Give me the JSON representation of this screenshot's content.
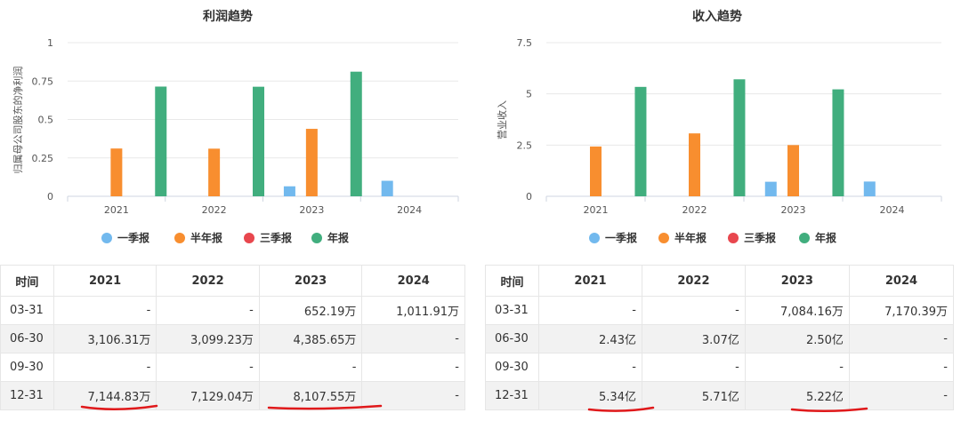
{
  "colors": {
    "q1": "#72b9ee",
    "h1": "#f88e2f",
    "q3": "#e8474e",
    "annual": "#41ae7e",
    "axis": "#cfd6e0",
    "grid": "#e8e8e8",
    "underline": "#e0191b"
  },
  "legend": [
    {
      "key": "q1",
      "label": "一季报"
    },
    {
      "key": "h1",
      "label": "半年报"
    },
    {
      "key": "q3",
      "label": "三季报"
    },
    {
      "key": "annual",
      "label": "年报"
    }
  ],
  "chart_data": [
    {
      "type": "bar",
      "title": "利润趋势",
      "ylabel": "归属母公司股东的净利润",
      "xlabel": "",
      "ylim": [
        0,
        1
      ],
      "yticks": [
        "0",
        "0.25",
        "0.5",
        "0.75",
        "1"
      ],
      "yticks_values": [
        0,
        0.25,
        0.5,
        0.75,
        1
      ],
      "categories": [
        "2021",
        "2022",
        "2023",
        "2024"
      ],
      "series": [
        {
          "name": "一季报",
          "key": "q1",
          "values": [
            null,
            null,
            0.065,
            0.101
          ]
        },
        {
          "name": "半年报",
          "key": "h1",
          "values": [
            0.311,
            0.31,
            0.439,
            null
          ]
        },
        {
          "name": "三季报",
          "key": "q3",
          "values": [
            null,
            null,
            null,
            null
          ]
        },
        {
          "name": "年报",
          "key": "annual",
          "values": [
            0.714,
            0.713,
            0.811,
            null
          ]
        }
      ]
    },
    {
      "type": "bar",
      "title": "收入趋势",
      "ylabel": "营业收入",
      "xlabel": "",
      "ylim": [
        0,
        7.5
      ],
      "yticks": [
        "0",
        "2.5",
        "5",
        "7.5"
      ],
      "yticks_values": [
        0,
        2.5,
        5,
        7.5
      ],
      "categories": [
        "2021",
        "2022",
        "2023",
        "2024"
      ],
      "series": [
        {
          "name": "一季报",
          "key": "q1",
          "values": [
            null,
            null,
            0.71,
            0.72
          ]
        },
        {
          "name": "半年报",
          "key": "h1",
          "values": [
            2.43,
            3.07,
            2.5,
            null
          ]
        },
        {
          "name": "三季报",
          "key": "q3",
          "values": [
            null,
            null,
            null,
            null
          ]
        },
        {
          "name": "年报",
          "key": "annual",
          "values": [
            5.34,
            5.71,
            5.22,
            null
          ]
        }
      ]
    }
  ],
  "tables": [
    {
      "headers": [
        "时间",
        "2021",
        "2022",
        "2023",
        "2024"
      ],
      "rows": [
        [
          "03-31",
          "-",
          "-",
          "652.19万",
          "1,011.91万"
        ],
        [
          "06-30",
          "3,106.31万",
          "3,099.23万",
          "4,385.65万",
          "-"
        ],
        [
          "09-30",
          "-",
          "-",
          "-",
          "-"
        ],
        [
          "12-31",
          "7,144.83万",
          "7,129.04万",
          "8,107.55万",
          "-"
        ]
      ]
    },
    {
      "headers": [
        "时间",
        "2021",
        "2022",
        "2023",
        "2024"
      ],
      "rows": [
        [
          "03-31",
          "-",
          "-",
          "7,084.16万",
          "7,170.39万"
        ],
        [
          "06-30",
          "2.43亿",
          "3.07亿",
          "2.50亿",
          "-"
        ],
        [
          "09-30",
          "-",
          "-",
          "-",
          "-"
        ],
        [
          "12-31",
          "5.34亿",
          "5.71亿",
          "5.22亿",
          "-"
        ]
      ]
    }
  ]
}
